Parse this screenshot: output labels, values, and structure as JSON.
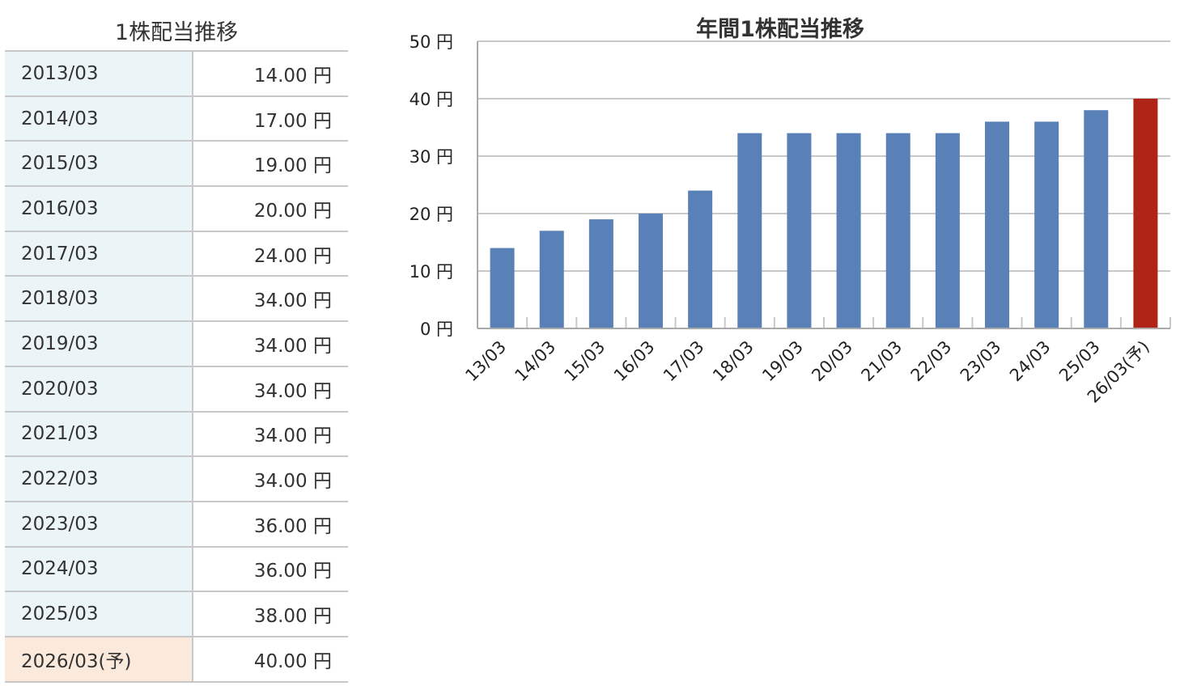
{
  "table": {
    "title": "1株配当推移",
    "rows": [
      {
        "period": "2013/03",
        "value": "14.00 円"
      },
      {
        "period": "2014/03",
        "value": "17.00 円"
      },
      {
        "period": "2015/03",
        "value": "19.00 円"
      },
      {
        "period": "2016/03",
        "value": "20.00 円"
      },
      {
        "period": "2017/03",
        "value": "24.00 円"
      },
      {
        "period": "2018/03",
        "value": "34.00 円"
      },
      {
        "period": "2019/03",
        "value": "34.00 円"
      },
      {
        "period": "2020/03",
        "value": "34.00 円"
      },
      {
        "period": "2021/03",
        "value": "34.00 円"
      },
      {
        "period": "2022/03",
        "value": "34.00 円"
      },
      {
        "period": "2023/03",
        "value": "36.00 円"
      },
      {
        "period": "2024/03",
        "value": "36.00 円"
      },
      {
        "period": "2025/03",
        "value": "38.00 円"
      },
      {
        "period": "2026/03(予)",
        "value": "40.00 円"
      }
    ]
  },
  "chart_data": {
    "type": "bar",
    "title": "年間1株配当推移",
    "categories": [
      "13/03",
      "14/03",
      "15/03",
      "16/03",
      "17/03",
      "18/03",
      "19/03",
      "20/03",
      "21/03",
      "22/03",
      "23/03",
      "24/03",
      "25/03",
      "26/03(予)"
    ],
    "values": [
      14,
      17,
      19,
      20,
      24,
      34,
      34,
      34,
      34,
      34,
      36,
      36,
      38,
      40
    ],
    "ylim": [
      0,
      50
    ],
    "yticks": [
      0,
      10,
      20,
      30,
      40,
      50
    ],
    "ytick_labels": [
      "0 円",
      "10 円",
      "20 円",
      "30 円",
      "40 円",
      "50 円"
    ],
    "xlabel": "",
    "ylabel": "",
    "grid": true,
    "colors": {
      "actual": "#5a80b8",
      "forecast": "#b02418"
    }
  }
}
